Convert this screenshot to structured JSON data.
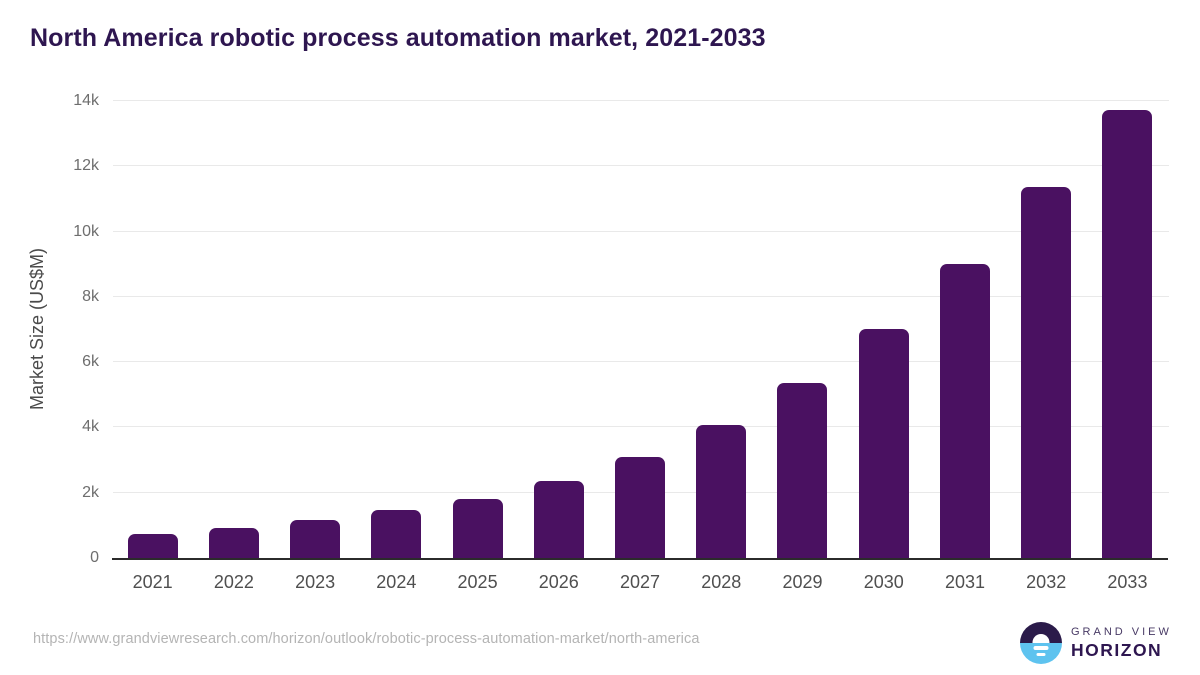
{
  "title": "North America robotic process automation market, 2021-2033",
  "chart_data": {
    "type": "bar",
    "title": "North America robotic process automation market, 2021-2033",
    "categories": [
      "2021",
      "2022",
      "2023",
      "2024",
      "2025",
      "2026",
      "2027",
      "2028",
      "2029",
      "2030",
      "2031",
      "2032",
      "2033"
    ],
    "values": [
      745,
      930,
      1175,
      1465,
      1810,
      2350,
      3095,
      4060,
      5360,
      7020,
      9020,
      11370,
      13740
    ],
    "xlabel": "",
    "ylabel": "Market Size (US$M)",
    "ylim": [
      0,
      14000
    ],
    "yticks": [
      0,
      2000,
      4000,
      6000,
      8000,
      10000,
      12000,
      14000
    ],
    "ytick_labels": [
      "0",
      "2k",
      "4k",
      "6k",
      "8k",
      "10k",
      "12k",
      "14k"
    ],
    "grid": true,
    "legend": "none",
    "bar_color": "#4a1161",
    "gridline_color": "#e9e9e9",
    "axis_line_color": "#2b2b2b",
    "title_color": "#2e1650"
  },
  "footer": {
    "source_url": "https://www.grandviewresearch.com/horizon/outlook/robotic-process-automation-market/north-america",
    "logo": {
      "line1": "GRAND VIEW",
      "line2": "HORIZON",
      "dark_color": "#2b1b4a",
      "blue_color": "#5ec3ef"
    }
  }
}
